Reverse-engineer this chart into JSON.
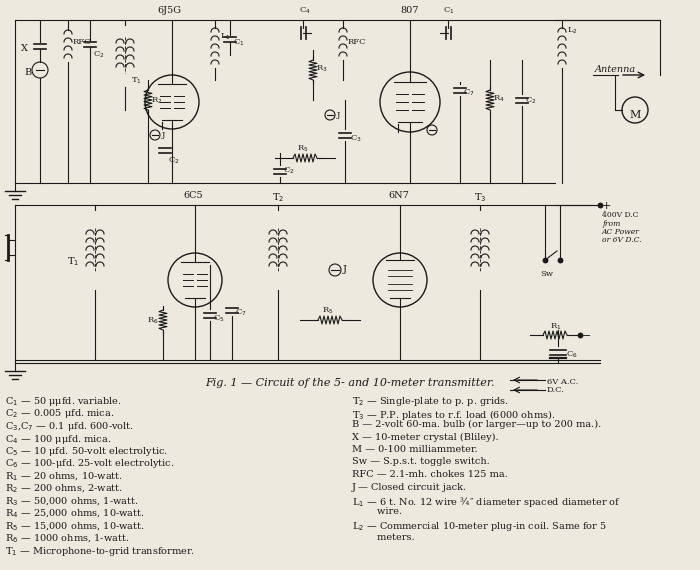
{
  "figure_caption": "Fig. 1 — Circuit of the 5- and 10-meter transmitter.",
  "bg_color": "#ede9df",
  "line_color": "#1a1a1a",
  "left_col_labels": [
    "C$_1$ — 50 μμfd. variable.",
    "C$_2$ — 0.005 μfd. mica.",
    "C$_3$,C$_7$ — 0.1 μfd. 600-volt.",
    "C$_4$ — 100 μμfd. mica.",
    "C$_5$ — 10 μfd. 50-volt electrolytic.",
    "C$_6$ — 100-μfd. 25-volt electrolytic.",
    "R$_1$ — 20 ohms, 10-watt.",
    "R$_2$ — 200 ohms, 2-watt.",
    "R$_3$ — 50,000 ohms, 1-watt.",
    "R$_4$ — 25,000 ohms, 10-watt.",
    "R$_5$ — 15,000 ohms, 10-watt.",
    "R$_6$ — 1000 ohms, 1-watt.",
    "T$_1$ — Microphone-to-grid transformer."
  ],
  "right_col_labels": [
    "T$_2$ — Single-plate to p. p. grids.",
    "T$_3$ — P.P. plates to r.f. load (6000 ohms).",
    "B — 2-volt 60-ma. bulb (or larger—up to 200 ma.).",
    "X — 10-meter crystal (Bliley).",
    "M — 0-100 milliammeter.",
    "Sw — S.p.s.t. toggle switch.",
    "RFC — 2.1-mh. chokes 125 ma.",
    "J — Closed circuit jack.",
    "L$_1$ — 6 t. No. 12 wire ¾″ diameter spaced diameter of",
    "        wire.",
    "L$_2$ — Commercial 10-meter plug-in coil. Same for 5",
    "        meters."
  ]
}
